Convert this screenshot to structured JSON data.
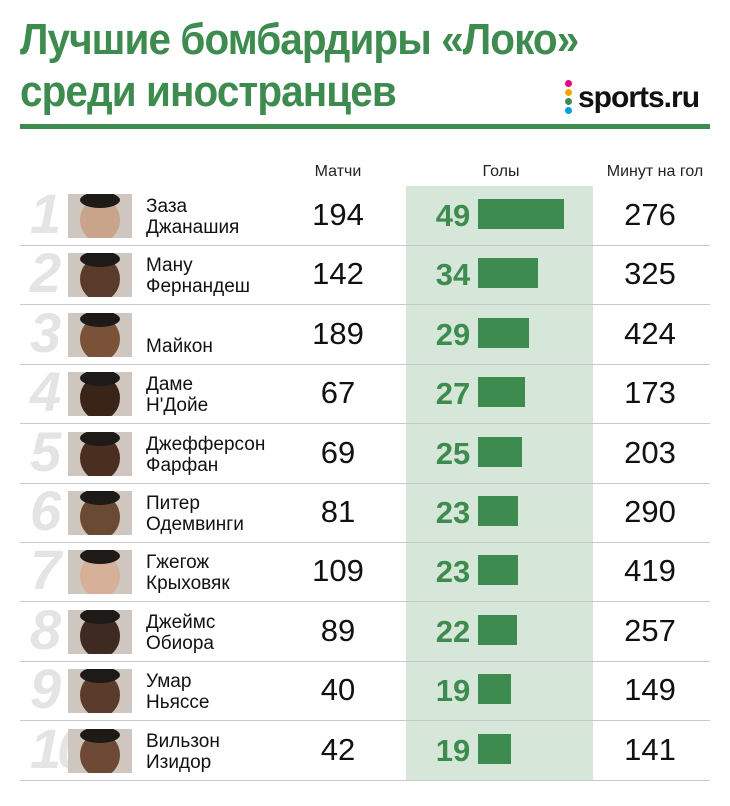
{
  "title_lines": [
    "Лучшие бомбардиры «Локо»",
    "среди иностранцев"
  ],
  "brand": "sports.ru",
  "colors": {
    "accent": "#3d8b4e",
    "band": "#d6e6d8",
    "rank": "#e4e4e4"
  },
  "headers": {
    "matches": "Матчи",
    "goals": "Голы",
    "minutes_per_goal": "Минут на гол"
  },
  "chart_data": {
    "type": "table",
    "title": "Лучшие бомбардиры «Локо» среди иностранцев",
    "columns": [
      "Матчи",
      "Голы",
      "Минут на гол"
    ],
    "rows": [
      {
        "rank": "1",
        "name": [
          "Заза",
          "Джанашия"
        ],
        "matches": "194",
        "goals": 49,
        "minutes_per_goal": "276",
        "photo": "player-photo"
      },
      {
        "rank": "2",
        "name": [
          "Ману",
          "Фернандеш"
        ],
        "matches": "142",
        "goals": 34,
        "minutes_per_goal": "325",
        "photo": "player-photo"
      },
      {
        "rank": "3",
        "name": [
          "",
          "Майкон"
        ],
        "matches": "189",
        "goals": 29,
        "minutes_per_goal": "424",
        "photo": "player-photo"
      },
      {
        "rank": "4",
        "name": [
          "Даме",
          "Н'Дойе"
        ],
        "matches": "67",
        "goals": 27,
        "minutes_per_goal": "173",
        "photo": "player-photo"
      },
      {
        "rank": "5",
        "name": [
          "Джефферсон",
          "Фарфан"
        ],
        "matches": "69",
        "goals": 25,
        "minutes_per_goal": "203",
        "photo": "player-photo"
      },
      {
        "rank": "6",
        "name": [
          "Питер",
          "Одемвинги"
        ],
        "matches": "81",
        "goals": 23,
        "minutes_per_goal": "290",
        "photo": "player-photo"
      },
      {
        "rank": "7",
        "name": [
          "Гжегож",
          "Крыховяк"
        ],
        "matches": "109",
        "goals": 23,
        "minutes_per_goal": "419",
        "photo": "player-photo"
      },
      {
        "rank": "8",
        "name": [
          "Джеймс",
          "Обиора"
        ],
        "matches": "89",
        "goals": 22,
        "minutes_per_goal": "257",
        "photo": "player-photo"
      },
      {
        "rank": "9",
        "name": [
          "Умар",
          "Ньяссе"
        ],
        "matches": "40",
        "goals": 19,
        "minutes_per_goal": "149",
        "photo": "player-photo"
      },
      {
        "rank": "10",
        "name": [
          "Вильзон",
          "Изидор"
        ],
        "matches": "42",
        "goals": 19,
        "minutes_per_goal": "141",
        "photo": "player-photo"
      }
    ]
  }
}
